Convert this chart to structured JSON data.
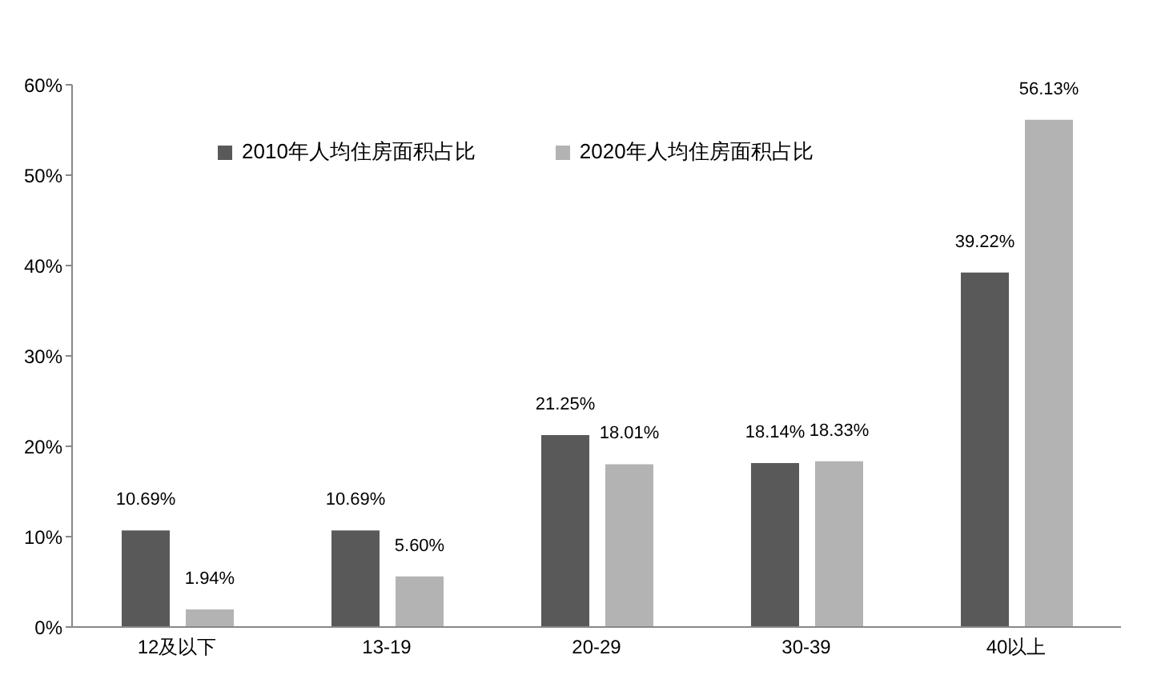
{
  "chart_data": {
    "type": "bar",
    "categories": [
      "12及以下",
      "13-19",
      "20-29",
      "30-39",
      "40以上"
    ],
    "series": [
      {
        "name": "2010年人均住房面积占比",
        "color": "#595959",
        "values": [
          10.69,
          10.69,
          21.25,
          18.14,
          39.22
        ],
        "value_labels": [
          "10.69%",
          "10.69%",
          "21.25%",
          "18.14%",
          "39.22%"
        ]
      },
      {
        "name": "2020年人均住房面积占比",
        "color": "#b3b3b3",
        "values": [
          1.94,
          5.6,
          18.01,
          18.33,
          56.13
        ],
        "value_labels": [
          "1.94%",
          "5.60%",
          "18.01%",
          "18.33%",
          "56.13%"
        ]
      }
    ],
    "ylim": [
      0,
      60
    ],
    "yticks": [
      {
        "value": 0,
        "label": "0%"
      },
      {
        "value": 10,
        "label": "10%"
      },
      {
        "value": 20,
        "label": "20%"
      },
      {
        "value": 30,
        "label": "30%"
      },
      {
        "value": 40,
        "label": "40%"
      },
      {
        "value": 50,
        "label": "50%"
      },
      {
        "value": 60,
        "label": "60%"
      }
    ],
    "grid": false,
    "legend": "top"
  }
}
